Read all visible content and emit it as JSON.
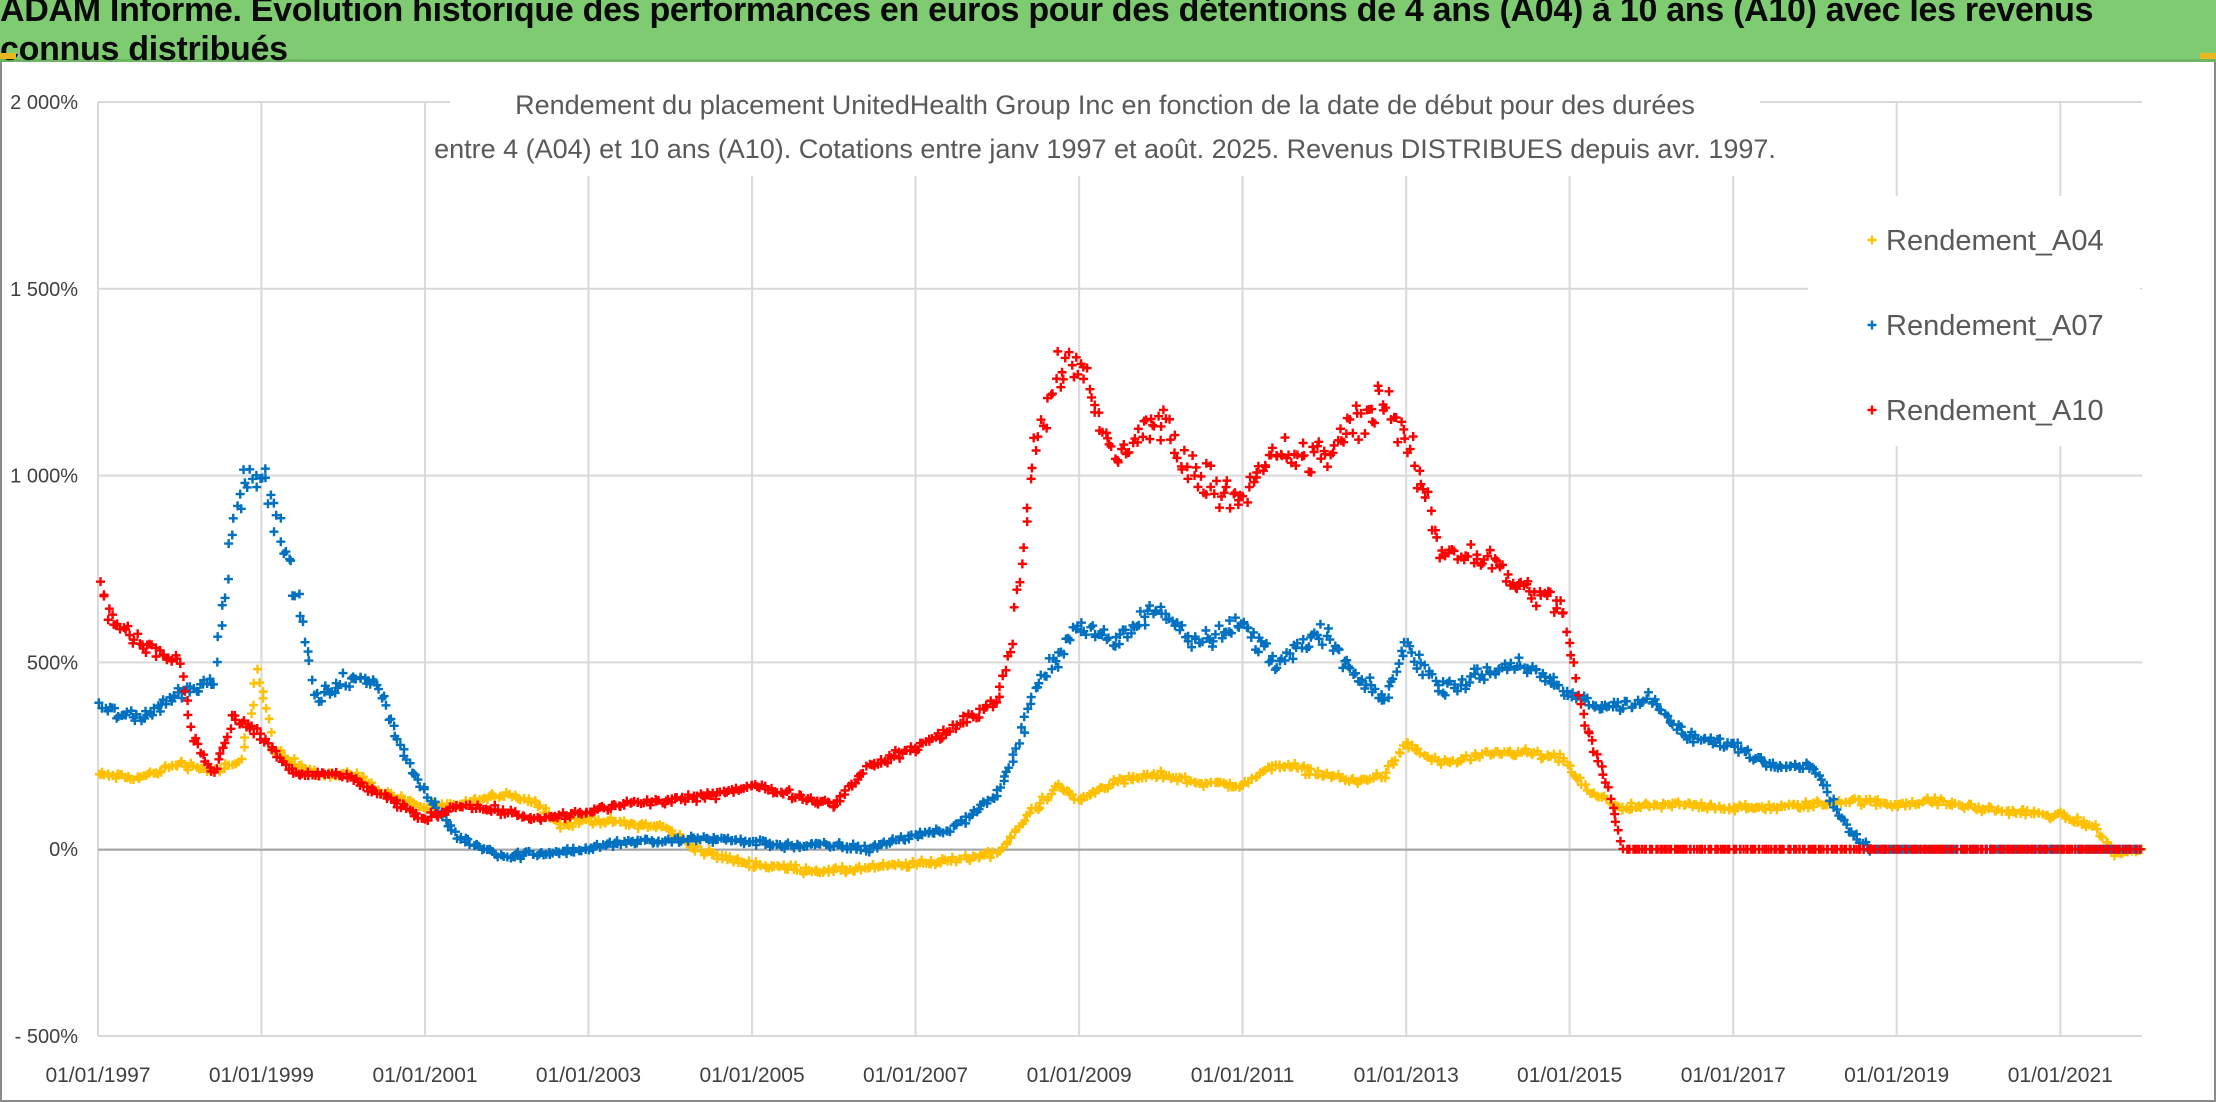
{
  "banner": {
    "title": "ADAM Informe. Evolution historique des performances en euros pour des détentions de 4 ans (A04) à 10 ans (A10) avec les revenus connus distribués"
  },
  "chart_data": {
    "type": "scatter",
    "title_lines": [
      "Rendement du placement UnitedHealth Group Inc en fonction de la date de début pour des durées",
      "entre 4 (A04) et 10 ans (A10). Cotations entre janv 1997 et août. 2025. Revenus DISTRIBUES depuis avr. 1997."
    ],
    "xlabel": "",
    "ylabel": "",
    "x_range": [
      "1997-01-01",
      "2022-01-01"
    ],
    "ylim": [
      -500,
      2000
    ],
    "y_ticks": [
      {
        "value": 2000,
        "label": "2 000%"
      },
      {
        "value": 1500,
        "label": "1 500%"
      },
      {
        "value": 1000,
        "label": "1 000%"
      },
      {
        "value": 500,
        "label": "500%"
      },
      {
        "value": 0,
        "label": "0%"
      },
      {
        "value": -500,
        "label": "- 500%"
      }
    ],
    "x_ticks": [
      {
        "value": "1997-01-01",
        "label": "01/01/1997"
      },
      {
        "value": "1999-01-01",
        "label": "01/01/1999"
      },
      {
        "value": "2001-01-01",
        "label": "01/01/2001"
      },
      {
        "value": "2003-01-01",
        "label": "01/01/2003"
      },
      {
        "value": "2005-01-01",
        "label": "01/01/2005"
      },
      {
        "value": "2007-01-01",
        "label": "01/01/2007"
      },
      {
        "value": "2009-01-01",
        "label": "01/01/2009"
      },
      {
        "value": "2011-01-01",
        "label": "01/01/2011"
      },
      {
        "value": "2013-01-01",
        "label": "01/01/2013"
      },
      {
        "value": "2015-01-01",
        "label": "01/01/2015"
      },
      {
        "value": "2017-01-01",
        "label": "01/01/2017"
      },
      {
        "value": "2019-01-01",
        "label": "01/01/2019"
      },
      {
        "value": "2021-01-01",
        "label": "01/01/2021"
      }
    ],
    "grid": {
      "horizontal": true,
      "vertical": true
    },
    "legend_position": "right",
    "marker": "+",
    "series": [
      {
        "name": "Rendement_A04",
        "color": "#ffc000",
        "points": [
          [
            "1997-01-01",
            200
          ],
          [
            "1997-07-01",
            190
          ],
          [
            "1998-01-01",
            230
          ],
          [
            "1998-06-01",
            210
          ],
          [
            "1998-10-01",
            230
          ],
          [
            "1998-12-15",
            480
          ],
          [
            "1999-03-01",
            260
          ],
          [
            "1999-06-01",
            230
          ],
          [
            "1999-10-01",
            200
          ],
          [
            "2000-03-01",
            200
          ],
          [
            "2000-06-01",
            160
          ],
          [
            "2001-01-01",
            110
          ],
          [
            "2001-07-01",
            120
          ],
          [
            "2002-01-01",
            150
          ],
          [
            "2002-06-01",
            120
          ],
          [
            "2002-09-01",
            60
          ],
          [
            "2003-01-01",
            80
          ],
          [
            "2003-06-01",
            70
          ],
          [
            "2003-12-01",
            60
          ],
          [
            "2004-06-01",
            -10
          ],
          [
            "2005-01-01",
            -40
          ],
          [
            "2005-06-01",
            -50
          ],
          [
            "2006-01-01",
            -60
          ],
          [
            "2006-06-01",
            -50
          ],
          [
            "2007-01-01",
            -40
          ],
          [
            "2007-06-01",
            -30
          ],
          [
            "2008-01-01",
            -10
          ],
          [
            "2008-03-01",
            30
          ],
          [
            "2008-06-01",
            100
          ],
          [
            "2008-10-01",
            170
          ],
          [
            "2009-01-01",
            130
          ],
          [
            "2009-06-01",
            180
          ],
          [
            "2010-01-01",
            200
          ],
          [
            "2010-06-01",
            180
          ],
          [
            "2011-01-01",
            170
          ],
          [
            "2011-06-01",
            230
          ],
          [
            "2012-01-01",
            200
          ],
          [
            "2012-06-01",
            180
          ],
          [
            "2012-10-01",
            200
          ],
          [
            "2013-01-01",
            280
          ],
          [
            "2013-06-01",
            230
          ],
          [
            "2014-01-01",
            250
          ],
          [
            "2014-06-01",
            260
          ],
          [
            "2014-12-01",
            240
          ],
          [
            "2015-04-01",
            150
          ],
          [
            "2015-09-01",
            110
          ],
          [
            "2016-06-01",
            120
          ],
          [
            "2017-01-01",
            110
          ],
          [
            "2017-06-01",
            110
          ],
          [
            "2018-01-01",
            120
          ],
          [
            "2018-06-01",
            130
          ],
          [
            "2019-01-01",
            120
          ],
          [
            "2019-06-01",
            130
          ],
          [
            "2020-01-01",
            110
          ],
          [
            "2020-06-01",
            100
          ],
          [
            "2021-01-01",
            90
          ],
          [
            "2021-06-01",
            60
          ],
          [
            "2021-09-01",
            -10
          ],
          [
            "2022-01-01",
            0
          ]
        ]
      },
      {
        "name": "Rendement_A07",
        "color": "#0070c0",
        "points": [
          [
            "1997-01-01",
            380
          ],
          [
            "1997-07-01",
            350
          ],
          [
            "1998-01-01",
            420
          ],
          [
            "1998-06-01",
            450
          ],
          [
            "1998-09-01",
            900
          ],
          [
            "1998-12-01",
            1050
          ],
          [
            "1999-03-01",
            900
          ],
          [
            "1999-06-01",
            700
          ],
          [
            "1999-09-01",
            400
          ],
          [
            "2000-01-01",
            450
          ],
          [
            "2000-06-01",
            450
          ],
          [
            "2000-10-01",
            250
          ],
          [
            "2001-01-01",
            150
          ],
          [
            "2001-06-01",
            30
          ],
          [
            "2002-01-01",
            -20
          ],
          [
            "2002-06-01",
            -10
          ],
          [
            "2003-01-01",
            0
          ],
          [
            "2003-06-01",
            20
          ],
          [
            "2004-01-01",
            20
          ],
          [
            "2004-06-01",
            30
          ],
          [
            "2005-01-01",
            20
          ],
          [
            "2005-06-01",
            10
          ],
          [
            "2006-01-01",
            10
          ],
          [
            "2006-06-01",
            0
          ],
          [
            "2007-01-01",
            40
          ],
          [
            "2007-06-01",
            50
          ],
          [
            "2008-01-01",
            150
          ],
          [
            "2008-03-01",
            220
          ],
          [
            "2008-06-01",
            400
          ],
          [
            "2008-09-01",
            500
          ],
          [
            "2009-01-01",
            600
          ],
          [
            "2009-06-01",
            550
          ],
          [
            "2010-01-01",
            650
          ],
          [
            "2010-06-01",
            560
          ],
          [
            "2011-01-01",
            600
          ],
          [
            "2011-06-01",
            500
          ],
          [
            "2012-01-01",
            580
          ],
          [
            "2012-06-01",
            450
          ],
          [
            "2012-10-01",
            400
          ],
          [
            "2013-01-01",
            550
          ],
          [
            "2013-06-01",
            430
          ],
          [
            "2014-01-01",
            470
          ],
          [
            "2014-06-01",
            500
          ],
          [
            "2014-12-01",
            420
          ],
          [
            "2015-06-01",
            380
          ],
          [
            "2016-01-01",
            400
          ],
          [
            "2016-06-01",
            300
          ],
          [
            "2017-01-01",
            280
          ],
          [
            "2017-06-01",
            230
          ],
          [
            "2018-01-01",
            220
          ],
          [
            "2018-03-01",
            150
          ],
          [
            "2018-06-01",
            50
          ],
          [
            "2018-09-01",
            0
          ],
          [
            "2019-06-01",
            0
          ],
          [
            "2021-06-01",
            0
          ],
          [
            "2022-01-01",
            0
          ]
        ]
      },
      {
        "name": "Rendement_A10",
        "color": "#ff0000",
        "points": [
          [
            "1997-01-01",
            700
          ],
          [
            "1997-03-01",
            620
          ],
          [
            "1997-07-01",
            550
          ],
          [
            "1998-01-01",
            500
          ],
          [
            "1998-03-01",
            300
          ],
          [
            "1998-06-01",
            200
          ],
          [
            "1998-09-01",
            350
          ],
          [
            "1999-01-01",
            300
          ],
          [
            "1999-06-01",
            200
          ],
          [
            "2000-01-01",
            200
          ],
          [
            "2000-06-01",
            150
          ],
          [
            "2001-01-01",
            80
          ],
          [
            "2001-06-01",
            120
          ],
          [
            "2002-01-01",
            100
          ],
          [
            "2002-06-01",
            80
          ],
          [
            "2003-01-01",
            100
          ],
          [
            "2003-06-01",
            120
          ],
          [
            "2004-01-01",
            130
          ],
          [
            "2004-06-01",
            140
          ],
          [
            "2005-01-01",
            170
          ],
          [
            "2005-06-01",
            150
          ],
          [
            "2006-01-01",
            120
          ],
          [
            "2006-06-01",
            220
          ],
          [
            "2007-01-01",
            270
          ],
          [
            "2007-06-01",
            320
          ],
          [
            "2008-01-01",
            400
          ],
          [
            "2008-03-01",
            550
          ],
          [
            "2008-06-01",
            1000
          ],
          [
            "2008-09-01",
            1250
          ],
          [
            "2009-01-01",
            1300
          ],
          [
            "2009-06-01",
            1050
          ],
          [
            "2010-01-01",
            1150
          ],
          [
            "2010-06-01",
            1000
          ],
          [
            "2011-01-01",
            950
          ],
          [
            "2011-06-01",
            1050
          ],
          [
            "2012-01-01",
            1050
          ],
          [
            "2012-06-01",
            1150
          ],
          [
            "2012-10-01",
            1200
          ],
          [
            "2013-03-01",
            1000
          ],
          [
            "2013-06-01",
            800
          ],
          [
            "2014-01-01",
            780
          ],
          [
            "2014-06-01",
            700
          ],
          [
            "2014-12-01",
            650
          ],
          [
            "2015-03-01",
            350
          ],
          [
            "2015-06-01",
            200
          ],
          [
            "2015-09-01",
            0
          ],
          [
            "2022-01-01",
            0
          ]
        ]
      }
    ]
  }
}
